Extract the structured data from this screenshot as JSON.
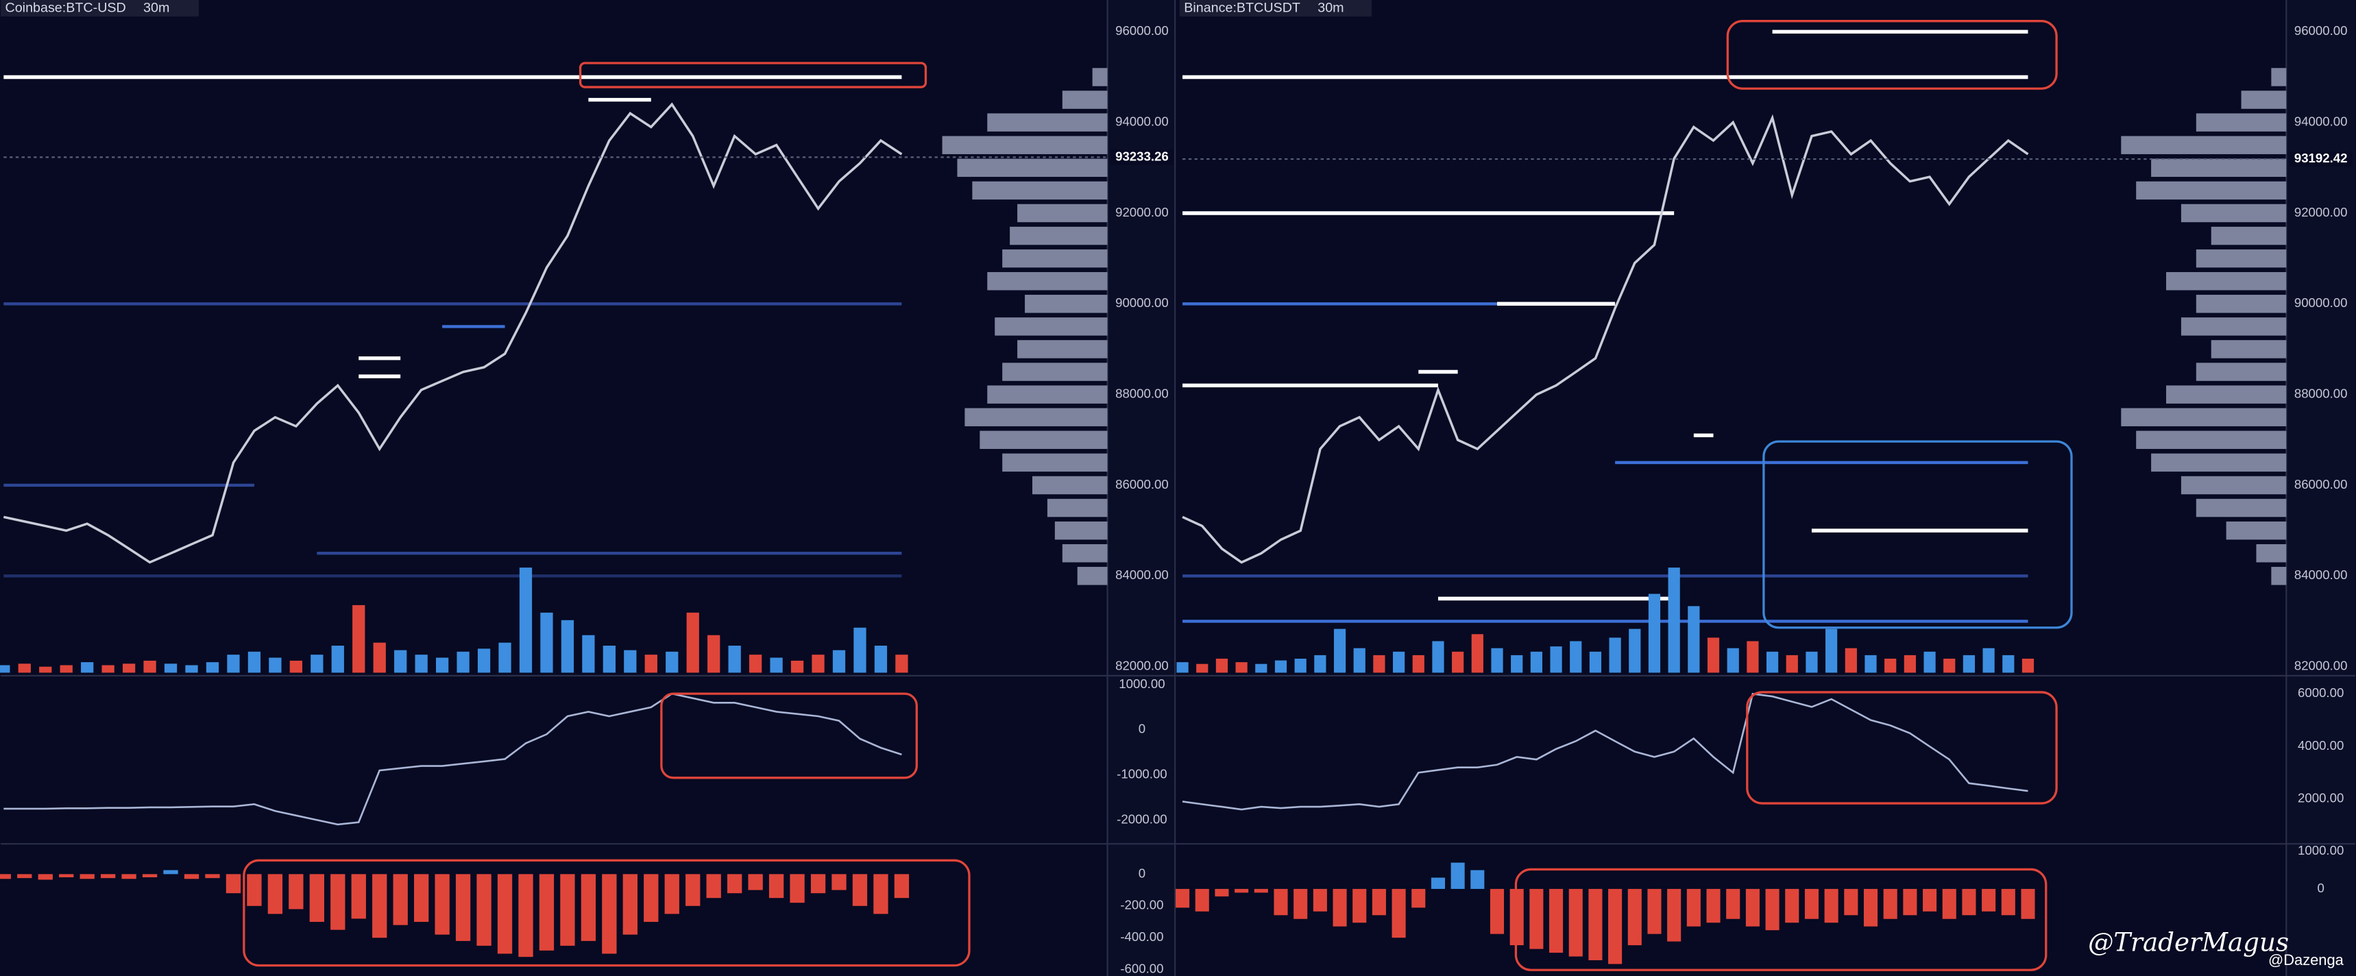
{
  "header": [
    {
      "title": "Coinbase:BTC-USD",
      "interval": "30m"
    },
    {
      "title": "Binance:BTCUSDT",
      "interval": "30m"
    }
  ],
  "watermarks": [
    "@TraderMagus",
    "@Dazenga"
  ],
  "chart_data": [
    {
      "type": "line",
      "color": "#c9ccd8",
      "ylim": [
        81800,
        96700
      ],
      "yticks": [
        {
          "value": 96000,
          "label": "96000.00"
        },
        {
          "value": 94000,
          "label": "94000.00"
        },
        {
          "value": 92000,
          "label": "92000.00"
        },
        {
          "value": 90000,
          "label": "90000.00"
        },
        {
          "value": 88000,
          "label": "88000.00"
        },
        {
          "value": 86000,
          "label": "86000.00"
        },
        {
          "value": 84000,
          "label": "84000.00"
        },
        {
          "value": 82000,
          "label": "82000.00"
        }
      ],
      "grid": false,
      "last_price": 93233.26,
      "values": [
        85300,
        85200,
        85100,
        85000,
        85150,
        84900,
        84600,
        84300,
        84500,
        84700,
        84900,
        86500,
        87200,
        87500,
        87300,
        87800,
        88200,
        87600,
        86800,
        87500,
        88100,
        88300,
        88500,
        88600,
        88900,
        89800,
        90800,
        91500,
        92600,
        93600,
        94200,
        93900,
        94400,
        93700,
        92600,
        93700,
        93300,
        93500,
        92800,
        92100,
        92700,
        93100,
        93600,
        93300
      ],
      "volume": {
        "values": [
          5,
          6,
          4,
          5,
          7,
          5,
          6,
          8,
          6,
          5,
          7,
          12,
          14,
          10,
          8,
          12,
          18,
          45,
          20,
          15,
          12,
          10,
          14,
          16,
          20,
          70,
          40,
          35,
          25,
          18,
          15,
          12,
          14,
          40,
          25,
          18,
          12,
          10,
          8,
          12,
          15,
          30,
          18,
          12
        ]
      },
      "liquidity_levels": [
        {
          "price": 95000,
          "from": 0,
          "to": 43,
          "color": "#ffffff"
        },
        {
          "price": 94500,
          "from": 28,
          "to": 31,
          "color": "#ffffff"
        },
        {
          "price": 90000,
          "from": 0,
          "to": 43,
          "color": "#2d4594"
        },
        {
          "price": 89500,
          "from": 21,
          "to": 24,
          "color": "#3d6fd6"
        },
        {
          "price": 88800,
          "from": 17,
          "to": 19,
          "color": "#ffffff"
        },
        {
          "price": 88400,
          "from": 17,
          "to": 19,
          "color": "#ffffff"
        },
        {
          "price": 86000,
          "from": 0,
          "to": 12,
          "color": "#2d4594"
        },
        {
          "price": 84500,
          "from": 15,
          "to": 43,
          "color": "#2d4594"
        },
        {
          "price": 84000,
          "from": 0,
          "to": 43,
          "color": "#1f2f6a"
        }
      ],
      "volume_profile": {
        "levels": [
          84000,
          84500,
          85000,
          85500,
          86000,
          86500,
          87000,
          87500,
          88000,
          88500,
          89000,
          89500,
          90000,
          90500,
          91000,
          91500,
          92000,
          92500,
          93000,
          93500,
          94000,
          94500,
          95000
        ],
        "values": [
          20,
          30,
          35,
          40,
          50,
          70,
          85,
          95,
          80,
          70,
          60,
          75,
          55,
          80,
          70,
          65,
          60,
          90,
          100,
          110,
          80,
          30,
          10
        ]
      }
    },
    {
      "type": "line",
      "color": "#aab6d6",
      "ylim": [
        -2530,
        1200
      ],
      "yticks": [
        {
          "value": 1000,
          "label": "1000.00"
        },
        0,
        {
          "value": -1000,
          "label": "-1000.00"
        },
        {
          "value": -2000,
          "label": "-2000.00"
        }
      ],
      "grid": false,
      "values": [
        -1750,
        -1750,
        -1750,
        -1740,
        -1740,
        -1730,
        -1730,
        -1720,
        -1720,
        -1710,
        -1700,
        -1700,
        -1650,
        -1800,
        -1900,
        -2000,
        -2100,
        -2050,
        -900,
        -850,
        -800,
        -800,
        -750,
        -700,
        -650,
        -300,
        -100,
        300,
        400,
        300,
        400,
        500,
        800,
        700,
        600,
        600,
        500,
        400,
        350,
        300,
        200,
        -200,
        -400,
        -550
      ]
    },
    {
      "type": "bar",
      "ylim": [
        -640,
        190
      ],
      "yticks": [
        0,
        {
          "value": -200,
          "label": "-200.00"
        },
        {
          "value": -400,
          "label": "-400.00"
        },
        {
          "value": -600,
          "label": "-600.00"
        }
      ],
      "grid": false,
      "values": [
        -30,
        -25,
        -35,
        -20,
        -30,
        -25,
        -30,
        -20,
        25,
        -30,
        -25,
        -120,
        -200,
        -250,
        -220,
        -300,
        -350,
        -280,
        -400,
        -320,
        -300,
        -380,
        -420,
        -450,
        -500,
        -520,
        -480,
        -450,
        -420,
        -500,
        -380,
        -300,
        -250,
        -200,
        -150,
        -120,
        -100,
        -150,
        -180,
        -120,
        -100,
        -200,
        -250,
        -150
      ]
    },
    {
      "type": "line",
      "color": "#c9ccd8",
      "ylim": [
        81800,
        96700
      ],
      "yticks": [
        {
          "value": 96000,
          "label": "96000.00"
        },
        {
          "value": 94000,
          "label": "94000.00"
        },
        {
          "value": 92000,
          "label": "92000.00"
        },
        {
          "value": 90000,
          "label": "90000.00"
        },
        {
          "value": 88000,
          "label": "88000.00"
        },
        {
          "value": 86000,
          "label": "86000.00"
        },
        {
          "value": 84000,
          "label": "84000.00"
        },
        {
          "value": 82000,
          "label": "82000.00"
        }
      ],
      "grid": false,
      "last_price": 93192.42,
      "values": [
        85300,
        85100,
        84600,
        84300,
        84500,
        84800,
        85000,
        86800,
        87300,
        87500,
        87000,
        87300,
        86800,
        88100,
        87000,
        86800,
        87200,
        87600,
        88000,
        88200,
        88500,
        88800,
        89900,
        90900,
        91300,
        93200,
        93900,
        93600,
        94000,
        93100,
        94100,
        92400,
        93700,
        93800,
        93300,
        93600,
        93100,
        92700,
        92800,
        92200,
        92800,
        93200,
        93600,
        93300
      ],
      "volume": {
        "values": [
          6,
          5,
          8,
          6,
          5,
          7,
          8,
          10,
          25,
          14,
          10,
          12,
          10,
          18,
          12,
          22,
          14,
          10,
          12,
          15,
          18,
          12,
          20,
          25,
          45,
          60,
          38,
          20,
          14,
          18,
          12,
          10,
          12,
          25,
          14,
          10,
          8,
          10,
          12,
          8,
          10,
          14,
          10,
          8
        ]
      },
      "liquidity_levels": [
        {
          "price": 96000,
          "from": 30,
          "to": 43,
          "color": "#ffffff"
        },
        {
          "price": 95000,
          "from": 0,
          "to": 43,
          "color": "#ffffff"
        },
        {
          "price": 92000,
          "from": 0,
          "to": 25,
          "color": "#ffffff"
        },
        {
          "price": 90000,
          "from": 16,
          "to": 22,
          "color": "#ffffff"
        },
        {
          "price": 90000,
          "from": 0,
          "to": 16,
          "color": "#3d6fd6"
        },
        {
          "price": 88500,
          "from": 12,
          "to": 14,
          "color": "#ffffff"
        },
        {
          "price": 88200,
          "from": 0,
          "to": 13,
          "color": "#ffffff"
        },
        {
          "price": 87100,
          "from": 26,
          "to": 27,
          "color": "#ffffff"
        },
        {
          "price": 86500,
          "from": 22,
          "to": 43,
          "color": "#3d6fd6"
        },
        {
          "price": 85000,
          "from": 32,
          "to": 43,
          "color": "#ffffff"
        },
        {
          "price": 84000,
          "from": 0,
          "to": 43,
          "color": "#2d4594"
        },
        {
          "price": 83500,
          "from": 13,
          "to": 25,
          "color": "#ffffff"
        },
        {
          "price": 83000,
          "from": 0,
          "to": 43,
          "color": "#3d6fd6"
        }
      ],
      "volume_profile": {
        "levels": [
          84000,
          84500,
          85000,
          85500,
          86000,
          86500,
          87000,
          87500,
          88000,
          88500,
          89000,
          89500,
          90000,
          90500,
          91000,
          91500,
          92000,
          92500,
          93000,
          93500,
          94000,
          94500,
          95000
        ],
        "values": [
          10,
          20,
          40,
          60,
          70,
          90,
          100,
          110,
          80,
          60,
          50,
          70,
          60,
          80,
          60,
          50,
          70,
          100,
          90,
          110,
          60,
          30,
          10
        ]
      }
    },
    {
      "type": "line",
      "color": "#aab6d6",
      "ylim": [
        290,
        6690
      ],
      "yticks": [
        {
          "value": 6000,
          "label": "6000.00"
        },
        {
          "value": 4000,
          "label": "4000.00"
        },
        {
          "value": 2000,
          "label": "2000.00"
        }
      ],
      "grid": false,
      "values": [
        1900,
        1800,
        1700,
        1600,
        1700,
        1650,
        1700,
        1700,
        1750,
        1800,
        1700,
        1800,
        3000,
        3100,
        3200,
        3200,
        3300,
        3600,
        3500,
        3900,
        4200,
        4600,
        4200,
        3800,
        3600,
        3800,
        4300,
        3600,
        3000,
        6000,
        5900,
        5700,
        5500,
        5800,
        5400,
        5000,
        4800,
        4500,
        4000,
        3500,
        2600,
        2500,
        2400,
        2300
      ]
    },
    {
      "type": "bar",
      "ylim": [
        -2320,
        1200
      ],
      "yticks": [
        {
          "value": 1000,
          "label": "1000.00"
        },
        0
      ],
      "grid": false,
      "values": [
        -500,
        -600,
        -200,
        -100,
        -100,
        -700,
        -800,
        -600,
        -1000,
        -900,
        -700,
        -1300,
        -500,
        300,
        700,
        500,
        -1200,
        -1500,
        -1600,
        -1700,
        -1800,
        -1900,
        -2000,
        -1500,
        -1200,
        -1400,
        -1000,
        -900,
        -800,
        -1000,
        -1100,
        -900,
        -800,
        -900,
        -700,
        -1000,
        -800,
        -700,
        -600,
        -800,
        -700,
        -600,
        -700,
        -800
      ]
    }
  ]
}
